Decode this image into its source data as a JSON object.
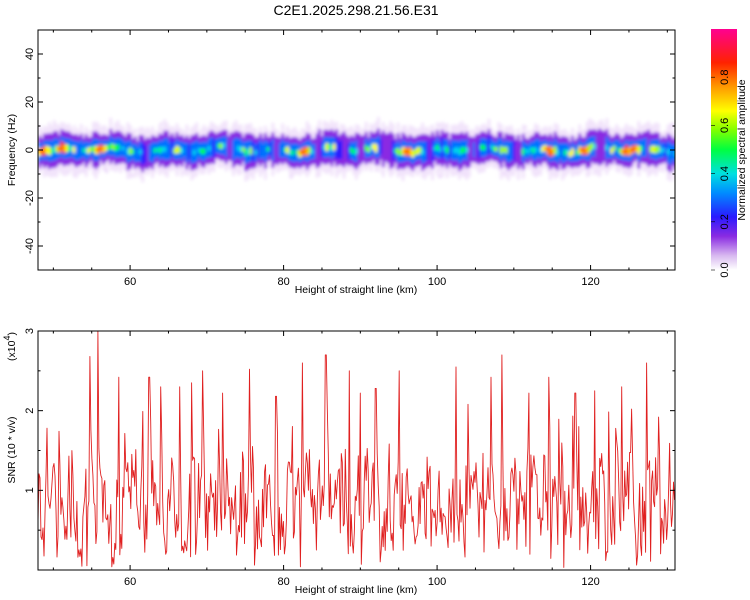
{
  "title": "C2E1.2025.298.21.56.E31",
  "chart_data": [
    {
      "type": "heatmap",
      "name": "spectrogram",
      "xlabel": "Height of straight line (km)",
      "ylabel": "Frequency (Hz)",
      "xlim": [
        48,
        131
      ],
      "ylim": [
        -50,
        50
      ],
      "xticks": [
        60,
        80,
        100,
        120
      ],
      "yticks": [
        -40,
        -20,
        0,
        20,
        40
      ],
      "band_center_hz": 0,
      "band_halfwidth_hz": 5,
      "hotspots_km": [
        48.5,
        51,
        56,
        82.5,
        96,
        114.5,
        119,
        124.5,
        125.5
      ],
      "colorbar": {
        "label": "Normalized spectral amplitude",
        "range": [
          0.0,
          1.0
        ],
        "ticks": [
          "0.0",
          "0.2",
          "0.4",
          "0.6",
          "0.8"
        ],
        "tick_values": [
          0.0,
          0.2,
          0.4,
          0.6,
          0.8
        ]
      }
    },
    {
      "type": "line",
      "name": "snr",
      "xlabel": "Height of straight line (km)",
      "ylabel": "SNR (10 * v/v)",
      "scale_label": "(x10",
      "scale_exp": "4",
      "scale_close": ")",
      "xlim": [
        48,
        131
      ],
      "ylim": [
        0,
        3
      ],
      "xticks": [
        60,
        80,
        100,
        120
      ],
      "yticks": [
        1,
        2,
        3
      ],
      "color": "#e02020",
      "peaks": [
        {
          "x": 49.2,
          "y": 1.78
        },
        {
          "x": 54.8,
          "y": 2.68
        },
        {
          "x": 55.8,
          "y": 3.0
        },
        {
          "x": 58.5,
          "y": 2.42
        },
        {
          "x": 62.5,
          "y": 2.42
        },
        {
          "x": 64.0,
          "y": 2.3
        },
        {
          "x": 66.5,
          "y": 2.3
        },
        {
          "x": 68.0,
          "y": 2.35
        },
        {
          "x": 69.5,
          "y": 2.5
        },
        {
          "x": 72.0,
          "y": 2.22
        },
        {
          "x": 75.5,
          "y": 2.52
        },
        {
          "x": 79.0,
          "y": 2.18
        },
        {
          "x": 82.5,
          "y": 2.6
        },
        {
          "x": 85.5,
          "y": 2.7
        },
        {
          "x": 88.5,
          "y": 2.5
        },
        {
          "x": 90.0,
          "y": 2.22
        },
        {
          "x": 92.0,
          "y": 2.28
        },
        {
          "x": 95.0,
          "y": 2.5
        },
        {
          "x": 102.5,
          "y": 2.55
        },
        {
          "x": 104.0,
          "y": 2.08
        },
        {
          "x": 107.0,
          "y": 2.42
        },
        {
          "x": 108.5,
          "y": 2.7
        },
        {
          "x": 112.0,
          "y": 2.22
        },
        {
          "x": 114.5,
          "y": 2.42
        },
        {
          "x": 118.0,
          "y": 2.22
        },
        {
          "x": 120.5,
          "y": 2.25
        },
        {
          "x": 124.0,
          "y": 2.3
        },
        {
          "x": 125.3,
          "y": 2.02
        },
        {
          "x": 127.3,
          "y": 2.6
        },
        {
          "x": 131.0,
          "y": 0.88
        }
      ]
    }
  ]
}
